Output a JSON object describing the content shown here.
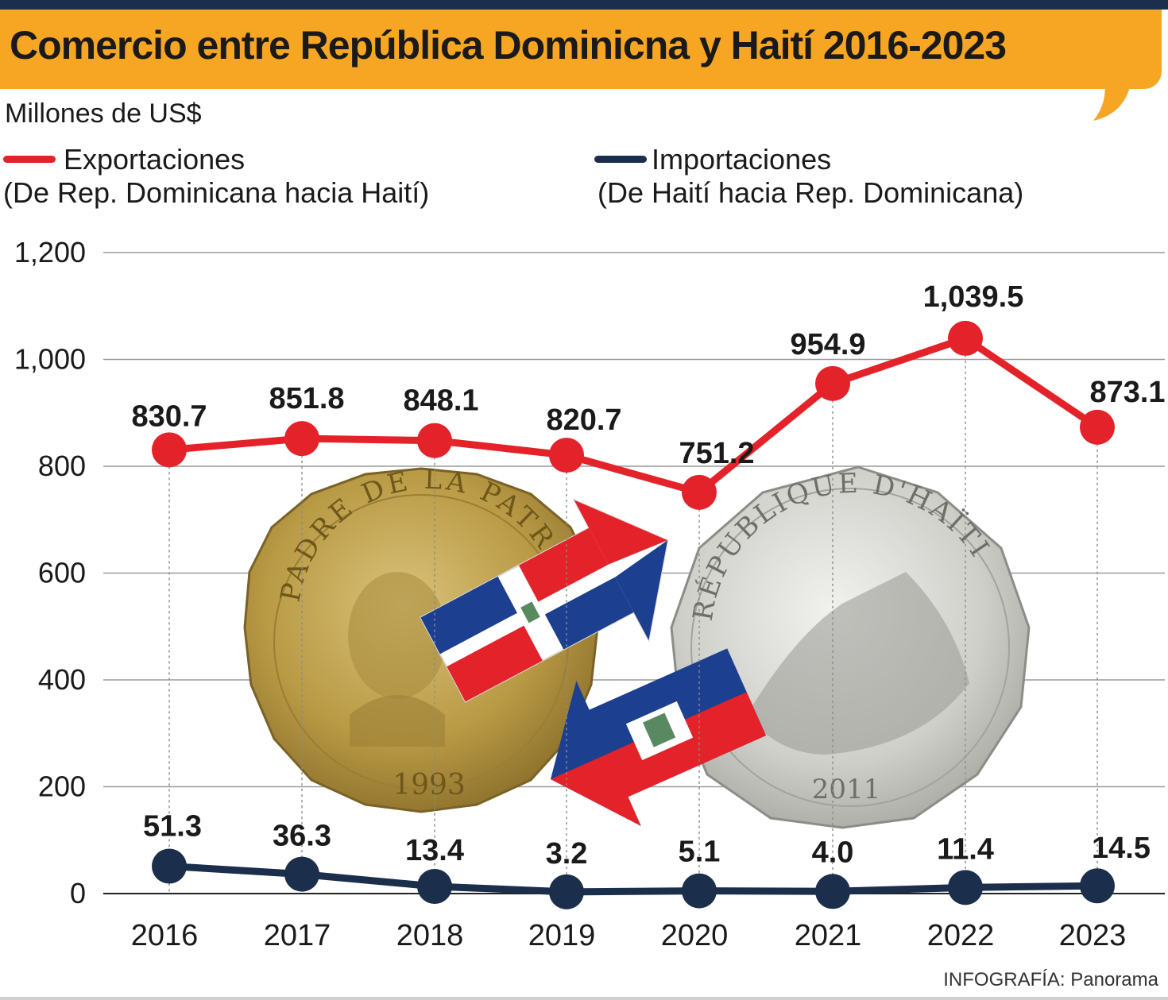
{
  "header": {
    "title": "Comercio entre República Dominicna y Haití 2016-2023",
    "unit": "Millones de US$",
    "credit": "INFOGRAFÍA: Panorama"
  },
  "legend": {
    "exports_label": "Exportaciones",
    "exports_sub": "(De Rep. Dominicana hacia Haití)",
    "imports_label": "Importaciones",
    "imports_sub": "(De Haití hacia Rep. Dominicana)"
  },
  "coins": {
    "dr_top": "PADRE DE LA PATRIA",
    "dr_year": "1993",
    "ht_top": "RÉPUBLIQUE D'HAÏTI",
    "ht_year": "2011"
  },
  "colors": {
    "exports": "#e42229",
    "imports": "#1b2e4b",
    "banner": "#f6a623"
  },
  "chart_data": {
    "type": "line",
    "title": "Comercio entre República Dominicna y Haití 2016-2023",
    "ylabel": "Millones de US$",
    "x": [
      "2016",
      "2017",
      "2018",
      "2019",
      "2020",
      "2021",
      "2022",
      "2023"
    ],
    "ylim": [
      0,
      1200
    ],
    "yticks": [
      0,
      200,
      400,
      600,
      800,
      1000,
      1200
    ],
    "ytick_labels": [
      "0",
      "200",
      "400",
      "600",
      "800",
      "1,000",
      "1,200"
    ],
    "grid": true,
    "series": [
      {
        "name": "Exportaciones",
        "values": [
          830.7,
          851.8,
          848.1,
          820.7,
          751.2,
          954.9,
          1039.5,
          873.1
        ],
        "labels": [
          "830.7",
          "851.8",
          "848.1",
          "820.7",
          "751.2",
          "954.9",
          "1,039.5",
          "873.1"
        ]
      },
      {
        "name": "Importaciones",
        "values": [
          51.3,
          36.3,
          13.4,
          3.2,
          5.1,
          4.0,
          11.4,
          14.5
        ],
        "labels": [
          "51.3",
          "36.3",
          "13.4",
          "3.2",
          "5.1",
          "4.0",
          "11.4",
          "14.5"
        ]
      }
    ]
  }
}
